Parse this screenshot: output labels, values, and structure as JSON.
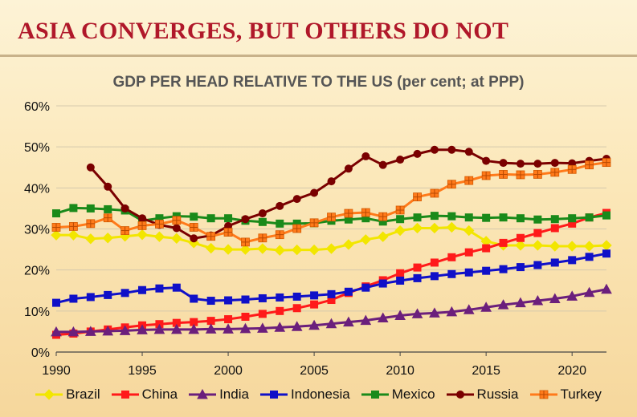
{
  "slide": {
    "title": "ASIA CONVERGES, BUT OTHERS DO NOT"
  },
  "chart_data": {
    "type": "line",
    "title": "GDP PER HEAD RELATIVE TO THE US (per cent; at PPP)",
    "xlabel": "",
    "ylabel": "",
    "xlim": [
      1990,
      2022
    ],
    "ylim": [
      0,
      60
    ],
    "x_ticks": [
      1990,
      1995,
      2000,
      2005,
      2010,
      2015,
      2020
    ],
    "y_ticks": [
      0,
      10,
      20,
      30,
      40,
      50,
      60
    ],
    "y_tick_labels": [
      "0%",
      "10%",
      "20%",
      "30%",
      "40%",
      "50%",
      "60%"
    ],
    "grid": true,
    "legend_position": "bottom",
    "series": [
      {
        "name": "Brazil",
        "color": "#f2e600",
        "marker": "diamond",
        "x": [
          1990,
          1991,
          1992,
          1993,
          1994,
          1995,
          1996,
          1997,
          1998,
          1999,
          2000,
          2001,
          2002,
          2003,
          2004,
          2005,
          2006,
          2007,
          2008,
          2009,
          2010,
          2011,
          2012,
          2013,
          2014,
          2015,
          2016,
          2017,
          2018,
          2019,
          2020,
          2021,
          2022
        ],
        "values": [
          28.5,
          28.5,
          27.6,
          27.8,
          28.2,
          28.6,
          28.1,
          27.7,
          26.6,
          25.3,
          25.0,
          25.0,
          25.2,
          24.8,
          24.9,
          24.9,
          25.2,
          26.2,
          27.4,
          28.1,
          29.6,
          30.2,
          30.2,
          30.4,
          29.6,
          27.0,
          26.0,
          26.0,
          26.0,
          25.8,
          25.8,
          25.8,
          26.0
        ]
      },
      {
        "name": "China",
        "color": "#ff1a1a",
        "marker": "square",
        "x": [
          1990,
          1991,
          1992,
          1993,
          1994,
          1995,
          1996,
          1997,
          1998,
          1999,
          2000,
          2001,
          2002,
          2003,
          2004,
          2005,
          2006,
          2007,
          2008,
          2009,
          2010,
          2011,
          2012,
          2013,
          2014,
          2015,
          2016,
          2017,
          2018,
          2019,
          2020,
          2021,
          2022
        ],
        "values": [
          4.2,
          4.5,
          5.0,
          5.5,
          6.0,
          6.5,
          6.8,
          7.1,
          7.3,
          7.6,
          8.0,
          8.6,
          9.3,
          10.0,
          10.7,
          11.6,
          12.7,
          14.4,
          16.0,
          17.5,
          19.2,
          20.6,
          21.8,
          23.1,
          24.3,
          25.3,
          26.6,
          27.8,
          29.0,
          30.2,
          31.3,
          32.8,
          33.9
        ]
      },
      {
        "name": "India",
        "color": "#6b1f7c",
        "marker": "triangle",
        "x": [
          1990,
          1991,
          1992,
          1993,
          1994,
          1995,
          1996,
          1997,
          1998,
          1999,
          2000,
          2001,
          2002,
          2003,
          2004,
          2005,
          2006,
          2007,
          2008,
          2009,
          2010,
          2011,
          2012,
          2013,
          2014,
          2015,
          2016,
          2017,
          2018,
          2019,
          2020,
          2021,
          2022
        ],
        "values": [
          4.9,
          4.9,
          5.0,
          5.1,
          5.2,
          5.4,
          5.5,
          5.5,
          5.5,
          5.6,
          5.6,
          5.7,
          5.8,
          6.0,
          6.2,
          6.5,
          6.9,
          7.3,
          7.7,
          8.3,
          8.9,
          9.3,
          9.5,
          9.8,
          10.3,
          10.9,
          11.5,
          12.0,
          12.5,
          13.0,
          13.6,
          14.5,
          15.3
        ]
      },
      {
        "name": "Indonesia",
        "color": "#1010c8",
        "marker": "square",
        "x": [
          1990,
          1991,
          1992,
          1993,
          1994,
          1995,
          1996,
          1997,
          1998,
          1999,
          2000,
          2001,
          2002,
          2003,
          2004,
          2005,
          2006,
          2007,
          2008,
          2009,
          2010,
          2011,
          2012,
          2013,
          2014,
          2015,
          2016,
          2017,
          2018,
          2019,
          2020,
          2021,
          2022
        ],
        "values": [
          12.0,
          13.0,
          13.4,
          13.9,
          14.4,
          15.1,
          15.5,
          15.7,
          13.0,
          12.5,
          12.6,
          12.8,
          13.1,
          13.3,
          13.5,
          13.8,
          14.1,
          14.7,
          15.7,
          16.7,
          17.4,
          18.0,
          18.5,
          19.0,
          19.4,
          19.8,
          20.2,
          20.7,
          21.2,
          21.8,
          22.4,
          23.2,
          24.0
        ]
      },
      {
        "name": "Mexico",
        "color": "#1a8a1a",
        "marker": "square",
        "x": [
          1990,
          1991,
          1992,
          1993,
          1994,
          1995,
          1996,
          1997,
          1998,
          1999,
          2000,
          2001,
          2002,
          2003,
          2004,
          2005,
          2006,
          2007,
          2008,
          2009,
          2010,
          2011,
          2012,
          2013,
          2014,
          2015,
          2016,
          2017,
          2018,
          2019,
          2020,
          2021,
          2022
        ],
        "values": [
          33.8,
          35.1,
          35.0,
          34.8,
          34.5,
          32.0,
          32.6,
          33.1,
          33.0,
          32.6,
          32.6,
          32.0,
          31.7,
          31.3,
          31.3,
          31.4,
          32.0,
          32.3,
          32.6,
          31.8,
          32.4,
          32.8,
          33.2,
          33.1,
          32.8,
          32.7,
          32.8,
          32.6,
          32.3,
          32.4,
          32.6,
          32.8,
          33.3
        ]
      },
      {
        "name": "Russia",
        "color": "#7a0000",
        "marker": "circle",
        "x": [
          1992,
          1993,
          1994,
          1995,
          1996,
          1997,
          1998,
          1999,
          2000,
          2001,
          2002,
          2003,
          2004,
          2005,
          2006,
          2007,
          2008,
          2009,
          2010,
          2011,
          2012,
          2013,
          2014,
          2015,
          2016,
          2017,
          2018,
          2019,
          2020,
          2021,
          2022
        ],
        "values": [
          45.0,
          40.3,
          35.0,
          32.6,
          31.0,
          30.2,
          27.7,
          28.4,
          30.7,
          32.4,
          33.8,
          35.6,
          37.3,
          38.8,
          41.6,
          44.7,
          47.7,
          45.6,
          46.9,
          48.3,
          49.3,
          49.3,
          48.8,
          46.6,
          46.1,
          45.9,
          45.9,
          46.1,
          46.0,
          46.6,
          47.1
        ]
      },
      {
        "name": "Turkey",
        "color": "#ff7a1a",
        "marker": "plus-square",
        "x": [
          1990,
          1991,
          1992,
          1993,
          1994,
          1995,
          1996,
          1997,
          1998,
          1999,
          2000,
          2001,
          2002,
          2003,
          2004,
          2005,
          2006,
          2007,
          2008,
          2009,
          2010,
          2011,
          2012,
          2013,
          2014,
          2015,
          2016,
          2017,
          2018,
          2019,
          2020,
          2021,
          2022
        ],
        "values": [
          30.4,
          30.6,
          31.3,
          32.7,
          29.6,
          30.8,
          31.2,
          32.1,
          30.4,
          28.2,
          29.2,
          26.8,
          27.8,
          28.6,
          30.1,
          31.5,
          32.9,
          33.8,
          34.0,
          33.0,
          34.6,
          37.8,
          38.7,
          40.9,
          41.8,
          43.0,
          43.3,
          43.2,
          43.3,
          43.8,
          44.5,
          45.6,
          46.2
        ]
      }
    ]
  }
}
